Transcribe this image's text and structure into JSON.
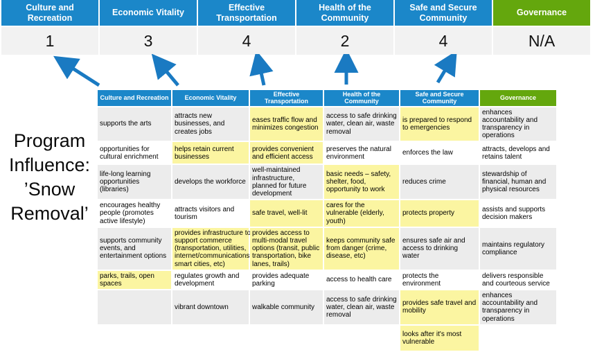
{
  "colors": {
    "blue": "#1b87c9",
    "green": "#64a70d",
    "highlight": "#fbf5a1",
    "row_alt": "#ececec",
    "score_bg": "#f2f2f2",
    "arrow": "#1a7ac2"
  },
  "title": {
    "text": "Program\nInfluence:\n’Snow\nRemoval’"
  },
  "banner": {
    "columns": [
      {
        "label": "Culture and Recreation",
        "score": "1",
        "theme": "blue"
      },
      {
        "label": "Economic Vitality",
        "score": "3",
        "theme": "blue"
      },
      {
        "label": "Effective Transportation",
        "score": "4",
        "theme": "blue"
      },
      {
        "label": "Health of the Community",
        "score": "2",
        "theme": "blue"
      },
      {
        "label": "Safe and Secure Community",
        "score": "4",
        "theme": "blue"
      },
      {
        "label": "Governance",
        "score": "N/A",
        "theme": "green"
      }
    ]
  },
  "arrows": {
    "description": "five upward arrows linking matrix columns to banner scores",
    "targets": [
      "Culture and Recreation",
      "Economic Vitality",
      "Effective Transportation",
      "Health of the Community",
      "Safe and Secure Community"
    ]
  },
  "matrix": {
    "headers": [
      {
        "label": "Culture and Recreation",
        "theme": "blue"
      },
      {
        "label": "Economic Vitality",
        "theme": "blue"
      },
      {
        "label": "Effective Transportation",
        "theme": "blue"
      },
      {
        "label": "Health of the Community",
        "theme": "blue"
      },
      {
        "label": "Safe and Secure Community",
        "theme": "blue"
      },
      {
        "label": "Governance",
        "theme": "green"
      }
    ],
    "rows": [
      [
        {
          "text": "supports the arts",
          "hl": false
        },
        {
          "text": "attracts new businesses, and creates jobs",
          "hl": false
        },
        {
          "text": "eases traffic flow and minimizes congestion",
          "hl": true
        },
        {
          "text": "access to safe drinking water, clean air, waste removal",
          "hl": false
        },
        {
          "text": "is prepared to respond to emergencies",
          "hl": true
        },
        {
          "text": "enhances accountability and transparency in operations",
          "hl": false
        }
      ],
      [
        {
          "text": "opportunities for cultural enrichment",
          "hl": false
        },
        {
          "text": "helps retain current businesses",
          "hl": true
        },
        {
          "text": "provides convenient and efficient access",
          "hl": true
        },
        {
          "text": "preserves the natural environment",
          "hl": false
        },
        {
          "text": "enforces the law",
          "hl": false
        },
        {
          "text": "attracts, develops and retains talent",
          "hl": false
        }
      ],
      [
        {
          "text": "life-long learning opportunities (libraries)",
          "hl": false
        },
        {
          "text": "develops the workforce",
          "hl": false
        },
        {
          "text": "well-maintained infrastructure, planned for future development",
          "hl": false
        },
        {
          "text": "basic needs – safety, shelter, food, opportunity to work",
          "hl": true
        },
        {
          "text": "reduces crime",
          "hl": false
        },
        {
          "text": "stewardship of financial, human and physical resources",
          "hl": false
        }
      ],
      [
        {
          "text": "encourages healthy people (promotes active lifestyle)",
          "hl": false
        },
        {
          "text": "attracts visitors and tourism",
          "hl": false
        },
        {
          "text": "safe travel, well-lit",
          "hl": true
        },
        {
          "text": "cares for the vulnerable (elderly, youth)",
          "hl": true
        },
        {
          "text": "protects property",
          "hl": true
        },
        {
          "text": "assists and supports decision makers",
          "hl": false
        }
      ],
      [
        {
          "text": "supports community events, and entertainment options",
          "hl": false
        },
        {
          "text": "provides infrastructure to support commerce (transportation, utilities, internet/communications, smart cities, etc)",
          "hl": true
        },
        {
          "text": "provides access to multi-modal travel options (transit, public transportation, bike lanes, trails)",
          "hl": true
        },
        {
          "text": "keeps community safe from danger (crime, disease, etc)",
          "hl": true
        },
        {
          "text": "ensures safe air and access to drinking water",
          "hl": false
        },
        {
          "text": "maintains regulatory compliance",
          "hl": false
        }
      ],
      [
        {
          "text": "parks, trails, open spaces",
          "hl": true
        },
        {
          "text": "regulates growth and development",
          "hl": false
        },
        {
          "text": "provides adequate parking",
          "hl": false
        },
        {
          "text": "access to health care",
          "hl": false
        },
        {
          "text": "protects the environment",
          "hl": false
        },
        {
          "text": "delivers responsible and courteous service",
          "hl": false
        }
      ],
      [
        {
          "text": "",
          "hl": false
        },
        {
          "text": "vibrant downtown",
          "hl": false
        },
        {
          "text": "walkable community",
          "hl": false
        },
        {
          "text": "access to safe drinking water, clean air, waste removal",
          "hl": false
        },
        {
          "text": "provides safe travel and mobility",
          "hl": true
        },
        {
          "text": "enhances accountability and transparency in operations",
          "hl": false
        }
      ],
      [
        {
          "text": "",
          "hl": false
        },
        {
          "text": "",
          "hl": false
        },
        {
          "text": "",
          "hl": false
        },
        {
          "text": "",
          "hl": false
        },
        {
          "text": "looks after it's most vulnerable",
          "hl": true
        },
        {
          "text": "",
          "hl": false
        }
      ]
    ]
  }
}
